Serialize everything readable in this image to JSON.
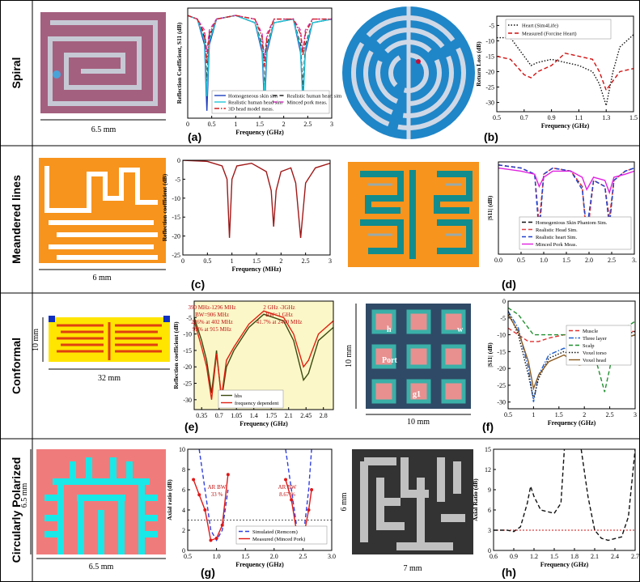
{
  "rows": [
    {
      "label": "Spiral"
    },
    {
      "label": "Meandered lines"
    },
    {
      "label": "Conformal"
    },
    {
      "label": "Circularly Polarized"
    }
  ],
  "antennas": [
    {
      "dimensions": [
        "6.5 mm"
      ]
    },
    {
      "dimensions": []
    },
    {
      "dimensions": [
        "6 mm"
      ]
    },
    {
      "dimensions": []
    },
    {
      "dimensions": [
        "10 mm",
        "32 mm"
      ]
    },
    {
      "dimensions": [
        "10 mm",
        "10 mm",
        "h",
        "w",
        "Port",
        "g1"
      ]
    },
    {
      "dimensions": [
        "6.5 mm",
        "6.5 mm"
      ]
    },
    {
      "dimensions": [
        "6 mm",
        "7 mm"
      ]
    }
  ],
  "chart_data": [
    {
      "type": "line",
      "panel_label": "(a)",
      "x_label": "Frequency (GHz)",
      "y_label": "Reflection Coefficient, S11 (dB)",
      "xlim": [
        0,
        3
      ],
      "ylim": [
        -30,
        0
      ],
      "xticks": [
        0,
        0.5,
        1,
        1.5,
        2,
        2.5,
        3
      ],
      "x": [
        0,
        0.2,
        0.35,
        0.4,
        0.45,
        0.6,
        1.0,
        1.4,
        1.55,
        1.6,
        1.65,
        1.8,
        2.2,
        2.35,
        2.4,
        2.45,
        2.6,
        3.0
      ],
      "series": [
        {
          "name": "Homogeneous skin sim",
          "color": "#1f3fbf",
          "dash": "solid",
          "values": [
            -2,
            -3,
            -10,
            -28,
            -10,
            -3,
            -2,
            -4,
            -12,
            -27,
            -12,
            -4,
            -3,
            -12,
            -25,
            -12,
            -4,
            -3
          ]
        },
        {
          "name": "Realistic human heart sim",
          "color": "#222222",
          "dash": "dashed",
          "values": [
            -2,
            -3,
            -8,
            -20,
            -8,
            -3,
            -2,
            -4,
            -10,
            -22,
            -10,
            -4,
            -3,
            -10,
            -22,
            -10,
            -4,
            -3
          ]
        },
        {
          "name": "Realistic human head sim",
          "color": "#22c8d8",
          "dash": "solid",
          "values": [
            -2,
            -3,
            -9,
            -24,
            -9,
            -3,
            -2,
            -4,
            -11,
            -24,
            -11,
            -4,
            -3,
            -11,
            -27,
            -11,
            -4,
            -3
          ]
        },
        {
          "name": "Minced pork meas.",
          "color": "#d040c0",
          "dash": "dashed",
          "values": [
            -2,
            -3,
            -6,
            -12,
            -6,
            -3,
            -2,
            -3,
            -7,
            -14,
            -7,
            -3,
            -3,
            -6,
            -12,
            -6,
            -3,
            -3
          ]
        },
        {
          "name": "3D head model meas.",
          "color": "#d02020",
          "dash": "dashdot",
          "values": [
            -2,
            -3,
            -7,
            -15,
            -7,
            -3,
            -2,
            -3,
            -8,
            -16,
            -8,
            -3,
            -3,
            -7,
            -13,
            -7,
            -3,
            -3
          ]
        }
      ]
    },
    {
      "type": "line",
      "panel_label": "(b)",
      "x_label": "Frequency (GHz)",
      "y_label": "Return Loss (dB)",
      "xlim": [
        0.5,
        1.5
      ],
      "ylim": [
        -33,
        -2
      ],
      "xticks": [
        0.5,
        0.7,
        0.9,
        1.1,
        1.3,
        1.5
      ],
      "yticks": [
        -30,
        -25,
        -20,
        -15,
        -10,
        -5
      ],
      "x": [
        0.5,
        0.6,
        0.7,
        0.75,
        0.8,
        0.9,
        1.0,
        1.1,
        1.2,
        1.25,
        1.3,
        1.35,
        1.4,
        1.5
      ],
      "series": [
        {
          "name": "Heart (Sim4Life)",
          "color": "#111111",
          "dash": "dotted",
          "values": [
            -9,
            -9,
            -15,
            -18,
            -17,
            -16,
            -17,
            -18,
            -20,
            -24,
            -31,
            -20,
            -12,
            -8
          ]
        },
        {
          "name": "Measured (Forcine Heart)",
          "color": "#d01010",
          "dash": "dashed",
          "values": [
            -15,
            -16,
            -21,
            -22,
            -20,
            -18,
            -14,
            -15,
            -16,
            -20,
            -26,
            -23,
            -20,
            -19
          ]
        }
      ]
    },
    {
      "type": "line",
      "panel_label": "(c)",
      "x_label": "Frequency (MHz)",
      "y_label": "Reflection coefficient (dB)",
      "xlim": [
        0,
        3
      ],
      "ylim": [
        -25,
        0
      ],
      "xticks": [
        0,
        0.5,
        1,
        1.5,
        2,
        2.5,
        3
      ],
      "yticks": [
        0,
        -5,
        -10,
        -15,
        -20,
        -25
      ],
      "x": [
        0,
        0.5,
        0.8,
        0.9,
        0.95,
        1.0,
        1.1,
        1.4,
        1.7,
        1.8,
        1.85,
        1.9,
        2.0,
        2.2,
        2.3,
        2.4,
        2.5,
        2.7,
        3.0
      ],
      "series": [
        {
          "name": null,
          "color": "#a01818",
          "dash": "solid",
          "values": [
            0,
            -0.3,
            -1.5,
            -5,
            -20.5,
            -5,
            -1.5,
            -0.8,
            -3,
            -8,
            -17.5,
            -8,
            -3,
            -2,
            -6,
            -20.5,
            -6,
            -2,
            -0.8
          ]
        }
      ]
    },
    {
      "type": "line",
      "panel_label": "(d)",
      "x_label": null,
      "y_label": "|S11| (dB)",
      "xlim": [
        0,
        3
      ],
      "ylim": [
        -30,
        0
      ],
      "xticks": [
        {
          "value": 0,
          "label": "0.0"
        },
        0.5,
        {
          "value": 1,
          "label": "1.0"
        },
        1.5,
        {
          "value": 2,
          "label": "2.0"
        },
        2.5,
        {
          "value": 3,
          "label": "3."
        }
      ],
      "x": [
        0,
        0.5,
        0.8,
        0.9,
        1.0,
        1.2,
        1.6,
        1.85,
        1.95,
        2.1,
        2.35,
        2.45,
        2.55,
        2.8,
        3.0
      ],
      "series": [
        {
          "name": "Homogenious Skin Phantom Sim.",
          "color": "#111111",
          "dash": "dashed",
          "values": [
            -1,
            -2,
            -4,
            -22,
            -4,
            -2,
            -3,
            -8,
            -24,
            -6,
            -8,
            -20,
            -6,
            -3,
            -2
          ]
        },
        {
          "name": "Realistic Head Sim.",
          "color": "#e04040",
          "dash": "dashed",
          "values": [
            -1,
            -2,
            -4,
            -20,
            -4,
            -2,
            -3,
            -8,
            -26,
            -6,
            -8,
            -18,
            -6,
            -3,
            -2
          ]
        },
        {
          "name": "Realistic heart Sim.",
          "color": "#2040d0",
          "dash": "dashed",
          "values": [
            -1,
            -2,
            -4,
            -24,
            -4,
            -2,
            -3,
            -9,
            -22,
            -6,
            -8,
            -21,
            -6,
            -3,
            -2
          ]
        },
        {
          "name": "Minced Pork Meas.",
          "color": "#e020e0",
          "dash": "solid",
          "values": [
            -2,
            -3,
            -4,
            -8,
            -5,
            -3,
            -3,
            -5,
            -9,
            -5,
            -6,
            -10,
            -5,
            -4,
            -3
          ]
        }
      ]
    },
    {
      "type": "line",
      "panel_label": "(e)",
      "x_label": "Frequency (GHz)",
      "y_label": "Reflection coefficient (dB)",
      "background": "#fbf7c8",
      "xlim": [
        0.2,
        3.0
      ],
      "ylim": [
        -33,
        0
      ],
      "xticks": [
        0.35,
        0.7,
        1.05,
        1.4,
        1.75,
        2.1,
        2.45,
        2.8
      ],
      "yticks": [
        -30,
        -25,
        -20,
        -15,
        -10,
        -5
      ],
      "x": [
        0.2,
        0.35,
        0.45,
        0.55,
        0.65,
        0.75,
        0.85,
        1.0,
        1.3,
        1.6,
        2.0,
        2.2,
        2.4,
        2.5,
        2.7,
        3.0
      ],
      "series": [
        {
          "name": "hbs",
          "color": "#3a4a10",
          "dash": "solid",
          "values": [
            -5,
            -12,
            -18,
            -28,
            -15,
            -30,
            -20,
            -15,
            -8,
            -4,
            -6,
            -12,
            -24,
            -22,
            -12,
            -8
          ]
        },
        {
          "name": "frequency dependent",
          "color": "#e02010",
          "dash": "solid",
          "values": [
            -6,
            -14,
            -20,
            -30,
            -16,
            -29,
            -18,
            -14,
            -7,
            -3,
            -5,
            -10,
            -20,
            -18,
            -10,
            -6
          ]
        }
      ],
      "annotations": [
        "390 MHz-1296 MHz",
        "BW=906 MHz",
        "226% at 402 MHz",
        "99% at 915 MHz",
        "2 GHz -3GHz",
        "BW=1 GHz",
        "41.7% at 2400 MHz"
      ]
    },
    {
      "type": "line",
      "panel_label": "(f)",
      "x_label": "Frequency (GHz)",
      "y_label": "|S11| (dB)",
      "xlim": [
        0.5,
        3
      ],
      "ylim": [
        -32,
        0
      ],
      "xticks": [
        0.5,
        1,
        1.5,
        2,
        2.5,
        3
      ],
      "yticks": [
        0,
        -5,
        -10,
        -15,
        -20,
        -25,
        -30
      ],
      "x": [
        0.5,
        0.7,
        0.9,
        1.0,
        1.1,
        1.3,
        1.6,
        1.9,
        2.2,
        2.4,
        2.5,
        2.6,
        2.8,
        3.0
      ],
      "series": [
        {
          "name": "Muscle",
          "color": "#e03030",
          "dash": "dashed",
          "values": [
            -8,
            -10,
            -12,
            -12,
            -12,
            -11,
            -10,
            -10,
            -10,
            -10,
            -10,
            -10,
            -9,
            -9
          ]
        },
        {
          "name": "Three layer",
          "color": "#2060d0",
          "dash": "dashdot",
          "values": [
            -3,
            -8,
            -20,
            -30,
            -22,
            -16,
            -14,
            -16,
            -18,
            -17,
            -15,
            -13,
            -11,
            -10
          ]
        },
        {
          "name": "Scalp",
          "color": "#209030",
          "dash": "dashed",
          "values": [
            -2,
            -4,
            -8,
            -10,
            -10,
            -10,
            -10,
            -11,
            -16,
            -27,
            -20,
            -12,
            -8,
            -6
          ]
        },
        {
          "name": "Voxel torso",
          "color": "#111111",
          "dash": "dotted",
          "values": [
            -3,
            -10,
            -22,
            -29,
            -23,
            -17,
            -15,
            -17,
            -17,
            -14,
            -12,
            -11,
            -10,
            -9
          ]
        },
        {
          "name": "Voxel head",
          "color": "#8a5a20",
          "dash": "solid",
          "values": [
            -4,
            -9,
            -18,
            -26,
            -22,
            -18,
            -16,
            -19,
            -18,
            -15,
            -13,
            -12,
            -11,
            -10
          ]
        }
      ]
    },
    {
      "type": "line",
      "panel_label": "(g)",
      "x_label": "Frequency (GHz)",
      "y_label": "Axial ratio (dB)",
      "xlim": [
        0.5,
        3
      ],
      "ylim": [
        0,
        10
      ],
      "xticks": [
        0.5,
        {
          "value": 1,
          "label": "1.0"
        },
        1.5,
        {
          "value": 2,
          "label": "2.0"
        },
        2.5,
        {
          "value": 3,
          "label": "3.0"
        }
      ],
      "yticks": [
        0,
        2,
        4,
        6,
        8,
        10
      ],
      "reference_line": {
        "value": 3,
        "color": "#555555"
      },
      "x": [
        0.6,
        0.7,
        0.8,
        0.9,
        1.0,
        1.1,
        1.2,
        1.5,
        2.2,
        2.3,
        2.4,
        2.5,
        2.6,
        2.65
      ],
      "series": [
        {
          "name": "Simulated (Remcom)",
          "color": "#3040e0",
          "dash": "dashed",
          "values": [
            null,
            10,
            6,
            2,
            1,
            2,
            6,
            null,
            10,
            6,
            2,
            1,
            6,
            10
          ]
        },
        {
          "name": "Measured (Minced Pork)",
          "color": "#e01818",
          "dash": "solid",
          "values": [
            7,
            5.5,
            4,
            1,
            1.2,
            2.5,
            7.5,
            null,
            7,
            5,
            1.5,
            1,
            4,
            6
          ]
        }
      ],
      "annotations": [
        "AR BW",
        "33 %",
        "AR BW",
        "8.67 %"
      ]
    },
    {
      "type": "line",
      "panel_label": "(h)",
      "x_label": "Frequency (GHz)",
      "y_label": "Axial Ratio (dB)",
      "xlim": [
        0.6,
        2.7
      ],
      "ylim": [
        0,
        15
      ],
      "xticks": [
        0.6,
        0.9,
        1.2,
        1.5,
        1.8,
        2.1,
        2.4,
        2.7
      ],
      "yticks": [
        0,
        3,
        6,
        9,
        12,
        15
      ],
      "reference_line": {
        "value": 3,
        "color": "#d01010"
      },
      "x": [
        0.6,
        0.8,
        0.9,
        1.0,
        1.1,
        1.15,
        1.2,
        1.3,
        1.5,
        1.6,
        1.65,
        1.7,
        1.9,
        2.0,
        2.1,
        2.2,
        2.3,
        2.5,
        2.6,
        2.7
      ],
      "series": [
        {
          "name": null,
          "color": "#111111",
          "dash": "dashed",
          "values": [
            3,
            3,
            2.8,
            3.5,
            7,
            9.5,
            8,
            6,
            5.5,
            7,
            15,
            null,
            15,
            8,
            3,
            1.8,
            1.5,
            2,
            5,
            15
          ]
        }
      ]
    }
  ]
}
